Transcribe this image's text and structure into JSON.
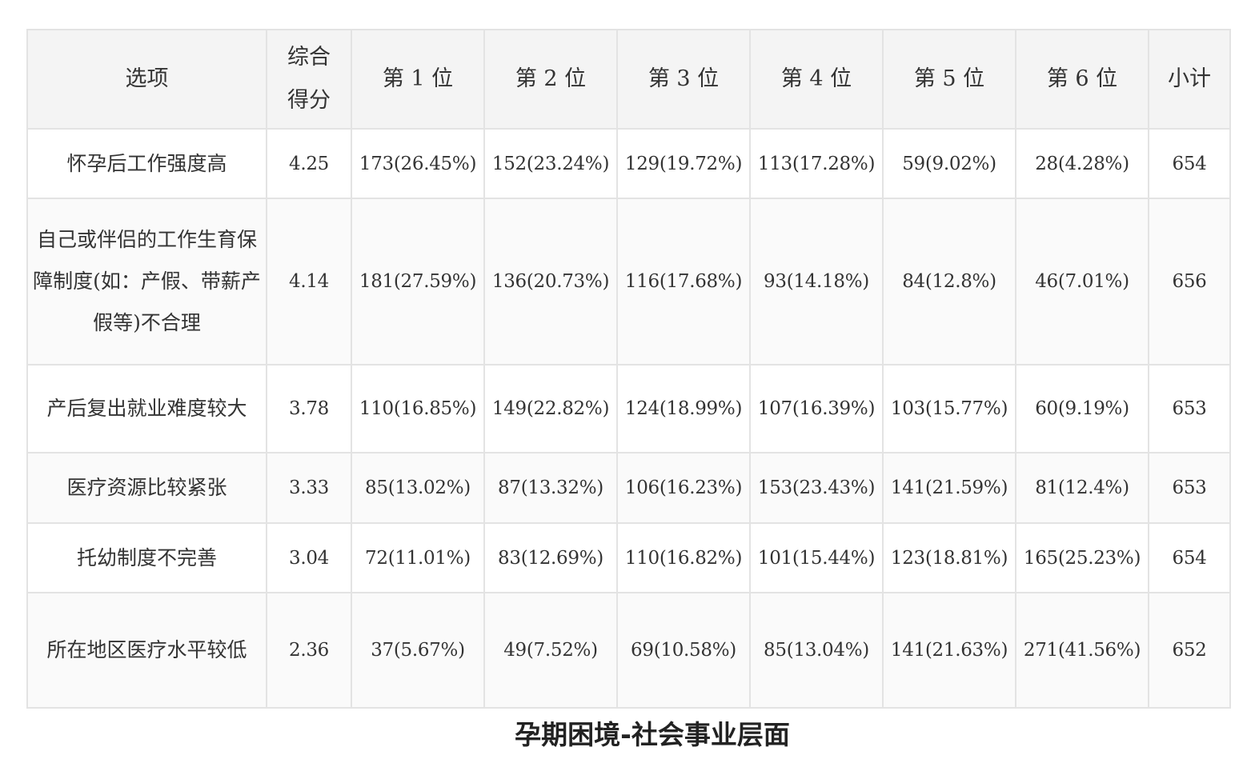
{
  "table": {
    "headers": [
      "选项",
      "综合\n得分",
      "第 1 位",
      "第 2 位",
      "第 3 位",
      "第 4 位",
      "第 5 位",
      "第 6 位",
      "小计"
    ],
    "rows": [
      [
        "怀孕后工作强度高",
        "4.25",
        "173(26.45%)",
        "152(23.24%)",
        "129(19.72%)",
        "113(17.28%)",
        "59(9.02%)",
        "28(4.28%)",
        "654"
      ],
      [
        "自己或伴侣的工作生育保障制度(如：产假、带薪产假等)不合理",
        "4.14",
        "181(27.59%)",
        "136(20.73%)",
        "116(17.68%)",
        "93(14.18%)",
        "84(12.8%)",
        "46(7.01%)",
        "656"
      ],
      [
        "产后复出就业难度较大",
        "3.78",
        "110(16.85%)",
        "149(22.82%)",
        "124(18.99%)",
        "107(16.39%)",
        "103(15.77%)",
        "60(9.19%)",
        "653"
      ],
      [
        "医疗资源比较紧张",
        "3.33",
        "85(13.02%)",
        "87(13.32%)",
        "106(16.23%)",
        "153(23.43%)",
        "141(21.59%)",
        "81(12.4%)",
        "653"
      ],
      [
        "托幼制度不完善",
        "3.04",
        "72(11.01%)",
        "83(12.69%)",
        "110(16.82%)",
        "101(15.44%)",
        "123(18.81%)",
        "165(25.23%)",
        "654"
      ],
      [
        "所在地区医疗水平较低",
        "2.36",
        "37(5.67%)",
        "49(7.52%)",
        "69(10.58%)",
        "85(13.04%)",
        "141(21.63%)",
        "271(41.56%)",
        "652"
      ]
    ]
  },
  "caption": "孕期困境-社会事业层面"
}
